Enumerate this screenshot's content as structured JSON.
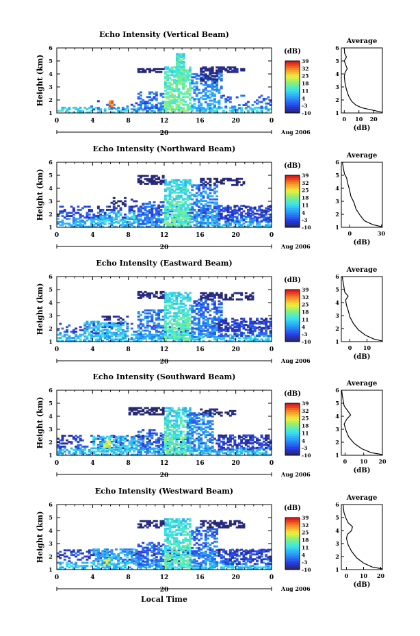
{
  "figure": {
    "xlabel": "Local Time",
    "date_label": "Aug 2006",
    "day_label": "20",
    "cbar_unit": "(dB)",
    "avg_title": "Average",
    "avg_xlabel": "(dB)"
  },
  "chart_data": [
    {
      "type": "heatmap",
      "title": "Echo Intensity (Vertical Beam)",
      "ylabel": "Height (km)",
      "xlim": [
        0,
        24
      ],
      "xticks": [
        "0",
        "4",
        "8",
        "12",
        "16",
        "20",
        "0"
      ],
      "ylim": [
        1,
        6
      ],
      "yticks": [
        "1",
        "2",
        "3",
        "4",
        "5",
        "6"
      ],
      "colorbar": {
        "ticks": [
          "-10",
          "-3",
          "4",
          "11",
          "18",
          "25",
          "32",
          "39"
        ],
        "range": [
          -10,
          39
        ]
      },
      "average": {
        "xlim": [
          -2,
          26
        ],
        "xticks": [
          "0",
          "10",
          "20"
        ],
        "profile": [
          [
            26,
            1.05
          ],
          [
            20,
            1.2
          ],
          [
            12,
            1.4
          ],
          [
            8,
            1.6
          ],
          [
            5,
            1.9
          ],
          [
            3,
            2.3
          ],
          [
            1.5,
            2.8
          ],
          [
            0.5,
            3.3
          ],
          [
            0,
            3.8
          ],
          [
            0.5,
            4.1
          ],
          [
            2,
            4.4
          ],
          [
            1,
            4.7
          ],
          [
            0,
            5.0
          ],
          [
            1.5,
            5.3
          ],
          [
            0.2,
            5.6
          ],
          [
            0,
            6.0
          ]
        ]
      },
      "blobs": [
        {
          "x": [
            0,
            24
          ],
          "y": [
            1.0,
            1.4
          ],
          "d": 0.45,
          "v": 10
        },
        {
          "x": [
            3,
            9
          ],
          "y": [
            1.1,
            1.8
          ],
          "d": 0.15,
          "v": 0
        },
        {
          "x": [
            9,
            12
          ],
          "y": [
            1.1,
            2.6
          ],
          "d": 0.4,
          "v": 2
        },
        {
          "x": [
            12,
            15
          ],
          "y": [
            1.1,
            4.5
          ],
          "d": 0.65,
          "v": 18
        },
        {
          "x": [
            13.3,
            14.1
          ],
          "y": [
            3.2,
            5.6
          ],
          "d": 0.9,
          "v": 20
        },
        {
          "x": [
            15,
            18.5
          ],
          "y": [
            1.3,
            4.0
          ],
          "d": 0.5,
          "v": 6
        },
        {
          "x": [
            16,
            18
          ],
          "y": [
            3.3,
            4.5
          ],
          "d": 0.5,
          "v": -6
        },
        {
          "x": [
            9,
            12
          ],
          "y": [
            4.1,
            4.4
          ],
          "d": 0.7,
          "v": -8
        },
        {
          "x": [
            16,
            21
          ],
          "y": [
            4.1,
            4.5
          ],
          "d": 0.6,
          "v": -6
        },
        {
          "x": [
            18.5,
            24
          ],
          "y": [
            1.2,
            2.4
          ],
          "d": 0.2,
          "v": 0
        },
        {
          "x": [
            5.8,
            6.1
          ],
          "y": [
            1.5,
            1.9
          ],
          "d": 1,
          "v": 34
        },
        {
          "x": [
            4.5,
            5.5
          ],
          "y": [
            1.5,
            2.2
          ],
          "d": 0.15,
          "v": -5
        }
      ]
    },
    {
      "type": "heatmap",
      "title": "Echo Intensity (Northward Beam)",
      "ylabel": "Height (km)",
      "xlim": [
        0,
        24
      ],
      "xticks": [
        "0",
        "4",
        "8",
        "12",
        "16",
        "20",
        "0"
      ],
      "ylim": [
        1,
        6
      ],
      "yticks": [
        "1",
        "2",
        "3",
        "4",
        "5",
        "6"
      ],
      "colorbar": {
        "ticks": [
          "-10",
          "-3",
          "4",
          "11",
          "18",
          "25",
          "32",
          "39"
        ],
        "range": [
          -10,
          39
        ]
      },
      "average": {
        "xlim": [
          -8,
          31
        ],
        "xticks": [
          "0",
          "30"
        ],
        "profile": [
          [
            30,
            1.05
          ],
          [
            22,
            1.2
          ],
          [
            14,
            1.5
          ],
          [
            10,
            1.9
          ],
          [
            6,
            2.4
          ],
          [
            4,
            2.9
          ],
          [
            1,
            3.4
          ],
          [
            0,
            3.8
          ],
          [
            -1,
            4.1
          ],
          [
            -2,
            4.4
          ],
          [
            -3,
            4.8
          ],
          [
            -5,
            5.1
          ],
          [
            -6,
            5.5
          ],
          [
            -7,
            6.0
          ]
        ]
      },
      "blobs": [
        {
          "x": [
            0,
            24
          ],
          "y": [
            1.0,
            1.7
          ],
          "d": 0.55,
          "v": 6
        },
        {
          "x": [
            0,
            24
          ],
          "y": [
            1.7,
            2.6
          ],
          "d": 0.3,
          "v": -2
        },
        {
          "x": [
            4,
            9
          ],
          "y": [
            1.3,
            2.2
          ],
          "d": 0.4,
          "v": 10
        },
        {
          "x": [
            9,
            12
          ],
          "y": [
            1.2,
            3.0
          ],
          "d": 0.45,
          "v": 2
        },
        {
          "x": [
            12,
            15
          ],
          "y": [
            1.1,
            4.6
          ],
          "d": 0.65,
          "v": 16
        },
        {
          "x": [
            15,
            18
          ],
          "y": [
            1.3,
            4.2
          ],
          "d": 0.5,
          "v": 6
        },
        {
          "x": [
            9,
            12
          ],
          "y": [
            4.3,
            5.0
          ],
          "d": 0.55,
          "v": -6
        },
        {
          "x": [
            16,
            21
          ],
          "y": [
            4.2,
            4.7
          ],
          "d": 0.55,
          "v": -6
        },
        {
          "x": [
            18,
            24
          ],
          "y": [
            1.4,
            2.7
          ],
          "d": 0.35,
          "v": -2
        },
        {
          "x": [
            6,
            9
          ],
          "y": [
            2.6,
            3.3
          ],
          "d": 0.3,
          "v": -5
        }
      ]
    },
    {
      "type": "heatmap",
      "title": "Echo Intensity (Eastward Beam)",
      "ylabel": "Height (km)",
      "xlim": [
        0,
        24
      ],
      "xticks": [
        "0",
        "4",
        "8",
        "12",
        "16",
        "20",
        "0"
      ],
      "ylim": [
        1,
        6
      ],
      "yticks": [
        "1",
        "2",
        "3",
        "4",
        "5",
        "6"
      ],
      "colorbar": {
        "ticks": [
          "-10",
          "-3",
          "4",
          "11",
          "18",
          "25",
          "32",
          "39"
        ],
        "range": [
          -10,
          39
        ]
      },
      "average": {
        "xlim": [
          -5,
          19
        ],
        "xticks": [
          "0",
          "10"
        ],
        "profile": [
          [
            19,
            1.05
          ],
          [
            14,
            1.2
          ],
          [
            9,
            1.5
          ],
          [
            5,
            1.9
          ],
          [
            2,
            2.4
          ],
          [
            0,
            2.9
          ],
          [
            -1,
            3.4
          ],
          [
            -2,
            3.8
          ],
          [
            -2.5,
            4.2
          ],
          [
            -1,
            4.5
          ],
          [
            -3,
            4.8
          ],
          [
            -3.5,
            5.2
          ],
          [
            -4,
            5.6
          ],
          [
            -4.5,
            6.0
          ]
        ]
      },
      "blobs": [
        {
          "x": [
            0,
            24
          ],
          "y": [
            1.0,
            1.6
          ],
          "d": 0.55,
          "v": 8
        },
        {
          "x": [
            0,
            24
          ],
          "y": [
            1.6,
            2.4
          ],
          "d": 0.25,
          "v": -2
        },
        {
          "x": [
            3,
            8
          ],
          "y": [
            1.4,
            2.6
          ],
          "d": 0.45,
          "v": 10
        },
        {
          "x": [
            9,
            12
          ],
          "y": [
            1.2,
            3.4
          ],
          "d": 0.5,
          "v": 4
        },
        {
          "x": [
            12,
            15
          ],
          "y": [
            1.1,
            4.8
          ],
          "d": 0.65,
          "v": 16
        },
        {
          "x": [
            15,
            18.5
          ],
          "y": [
            1.3,
            4.2
          ],
          "d": 0.5,
          "v": 4
        },
        {
          "x": [
            9,
            12
          ],
          "y": [
            4.3,
            4.9
          ],
          "d": 0.6,
          "v": -6
        },
        {
          "x": [
            16,
            22
          ],
          "y": [
            4.2,
            4.8
          ],
          "d": 0.55,
          "v": -6
        },
        {
          "x": [
            18,
            24
          ],
          "y": [
            1.4,
            2.8
          ],
          "d": 0.45,
          "v": -3
        },
        {
          "x": [
            5,
            8
          ],
          "y": [
            2.4,
            3.0
          ],
          "d": 0.3,
          "v": -7
        }
      ]
    },
    {
      "type": "heatmap",
      "title": "Echo Intensity (Southward Beam)",
      "ylabel": "Height (km)",
      "xlim": [
        0,
        24
      ],
      "xticks": [
        "0",
        "4",
        "8",
        "12",
        "16",
        "20",
        "0"
      ],
      "ylim": [
        1,
        6
      ],
      "yticks": [
        "1",
        "2",
        "3",
        "4",
        "5",
        "6"
      ],
      "colorbar": {
        "ticks": [
          "-10",
          "-3",
          "4",
          "11",
          "18",
          "25",
          "32",
          "39"
        ],
        "range": [
          -10,
          39
        ]
      },
      "average": {
        "xlim": [
          -2,
          20
        ],
        "xticks": [
          "0",
          "10",
          "20"
        ],
        "profile": [
          [
            20,
            1.05
          ],
          [
            14,
            1.2
          ],
          [
            9,
            1.5
          ],
          [
            5,
            1.9
          ],
          [
            2,
            2.4
          ],
          [
            0.5,
            2.9
          ],
          [
            -0.5,
            3.4
          ],
          [
            1,
            3.8
          ],
          [
            3,
            4.1
          ],
          [
            1,
            4.5
          ],
          [
            -0.5,
            4.8
          ],
          [
            -1,
            5.2
          ],
          [
            -1.5,
            5.6
          ],
          [
            -1.8,
            6.0
          ]
        ]
      },
      "blobs": [
        {
          "x": [
            0,
            24
          ],
          "y": [
            1.0,
            1.5
          ],
          "d": 0.55,
          "v": 8
        },
        {
          "x": [
            0,
            24
          ],
          "y": [
            1.5,
            2.5
          ],
          "d": 0.3,
          "v": -3
        },
        {
          "x": [
            4,
            9
          ],
          "y": [
            1.3,
            2.4
          ],
          "d": 0.45,
          "v": 10
        },
        {
          "x": [
            9,
            12
          ],
          "y": [
            1.2,
            3.0
          ],
          "d": 0.45,
          "v": 2
        },
        {
          "x": [
            12,
            15
          ],
          "y": [
            1.1,
            4.7
          ],
          "d": 0.65,
          "v": 16
        },
        {
          "x": [
            14.5,
            17.5
          ],
          "y": [
            1.3,
            4.3
          ],
          "d": 0.5,
          "v": 6
        },
        {
          "x": [
            8,
            12
          ],
          "y": [
            4.1,
            4.6
          ],
          "d": 0.55,
          "v": -7
        },
        {
          "x": [
            16,
            20
          ],
          "y": [
            4.0,
            4.6
          ],
          "d": 0.5,
          "v": -6
        },
        {
          "x": [
            18,
            24
          ],
          "y": [
            1.4,
            2.6
          ],
          "d": 0.4,
          "v": -4
        },
        {
          "x": [
            5.2,
            5.9
          ],
          "y": [
            1.6,
            2.1
          ],
          "d": 0.7,
          "v": 25
        }
      ]
    },
    {
      "type": "heatmap",
      "title": "Echo Intensity (Westward Beam)",
      "ylabel": "Height (km)",
      "xlim": [
        0,
        24
      ],
      "xticks": [
        "0",
        "4",
        "8",
        "12",
        "16",
        "20",
        "0"
      ],
      "ylim": [
        1,
        6
      ],
      "yticks": [
        "1",
        "2",
        "3",
        "4",
        "5",
        "6"
      ],
      "colorbar": {
        "ticks": [
          "-10",
          "-3",
          "4",
          "11",
          "18",
          "25",
          "32",
          "39"
        ],
        "range": [
          -10,
          39
        ]
      },
      "average": {
        "xlim": [
          -3,
          21
        ],
        "xticks": [
          "0",
          "10",
          "20"
        ],
        "profile": [
          [
            21,
            1.05
          ],
          [
            15,
            1.2
          ],
          [
            10,
            1.5
          ],
          [
            6,
            1.9
          ],
          [
            3,
            2.4
          ],
          [
            1,
            2.9
          ],
          [
            0,
            3.4
          ],
          [
            0.5,
            3.7
          ],
          [
            3,
            4.0
          ],
          [
            3.5,
            4.3
          ],
          [
            1,
            4.6
          ],
          [
            -0.5,
            5.0
          ],
          [
            -1.5,
            5.4
          ],
          [
            -2,
            6.0
          ]
        ]
      },
      "blobs": [
        {
          "x": [
            0,
            24
          ],
          "y": [
            1.0,
            1.6
          ],
          "d": 0.5,
          "v": 8
        },
        {
          "x": [
            0,
            24
          ],
          "y": [
            1.6,
            2.5
          ],
          "d": 0.3,
          "v": -2
        },
        {
          "x": [
            4,
            9
          ],
          "y": [
            1.3,
            2.6
          ],
          "d": 0.45,
          "v": 8
        },
        {
          "x": [
            9,
            12
          ],
          "y": [
            1.2,
            3.1
          ],
          "d": 0.45,
          "v": 2
        },
        {
          "x": [
            12,
            15
          ],
          "y": [
            1.1,
            4.9
          ],
          "d": 0.65,
          "v": 16
        },
        {
          "x": [
            15,
            18
          ],
          "y": [
            1.3,
            4.3
          ],
          "d": 0.5,
          "v": 4
        },
        {
          "x": [
            9,
            12
          ],
          "y": [
            4.2,
            4.7
          ],
          "d": 0.6,
          "v": -6
        },
        {
          "x": [
            16,
            21
          ],
          "y": [
            4.2,
            4.7
          ],
          "d": 0.55,
          "v": -6
        },
        {
          "x": [
            18,
            24
          ],
          "y": [
            1.4,
            2.6
          ],
          "d": 0.4,
          "v": -3
        },
        {
          "x": [
            5.2,
            5.8
          ],
          "y": [
            1.3,
            1.8
          ],
          "d": 0.6,
          "v": 22
        }
      ]
    }
  ]
}
